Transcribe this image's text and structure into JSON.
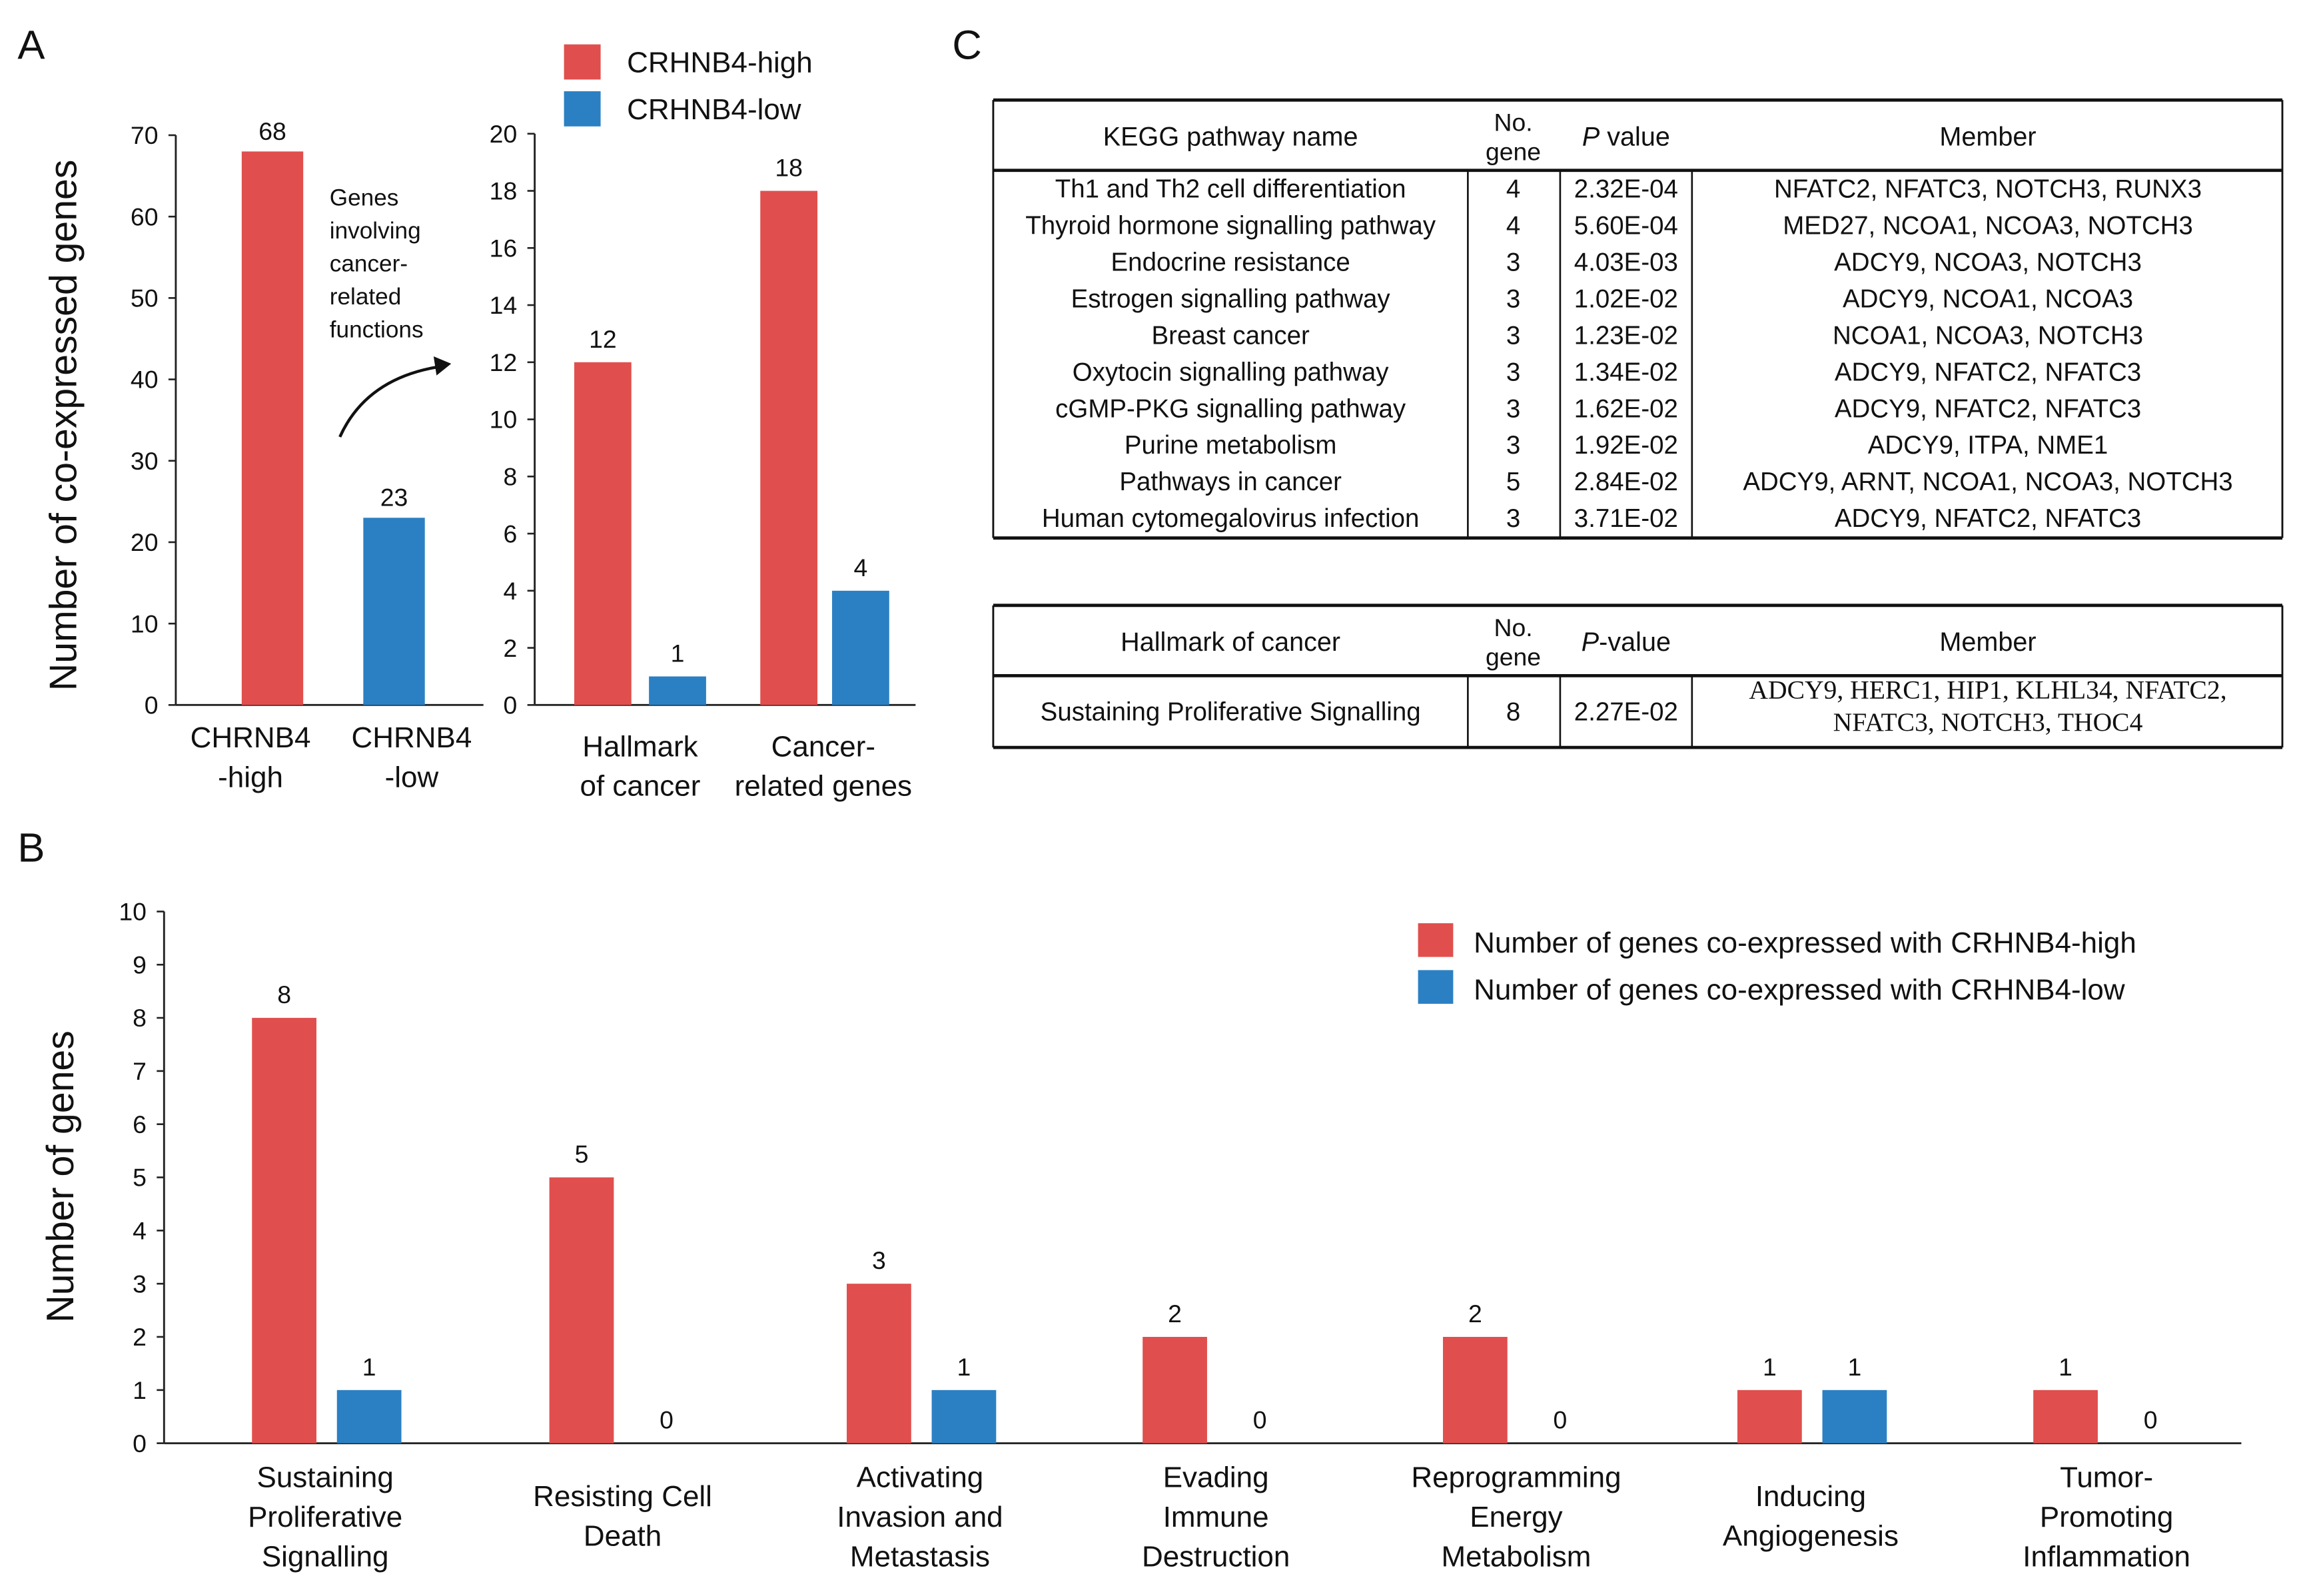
{
  "panel_labels": {
    "a": "A",
    "b": "B",
    "c": "C"
  },
  "colors": {
    "high": "#e04f4d",
    "low": "#2b80c3"
  },
  "chart_data": [
    {
      "id": "A-left",
      "type": "bar",
      "title": "",
      "ylabel": "Number of co-expressed genes",
      "ylim": [
        0,
        70
      ],
      "yticks": [
        "0",
        "10",
        "20",
        "30",
        "40",
        "50",
        "60",
        "70"
      ],
      "categories": [
        [
          "CHRNB4",
          "-high"
        ],
        [
          "CHRNB4",
          "-low"
        ]
      ],
      "values": [
        68,
        23
      ],
      "value_labels": [
        "68",
        "23"
      ],
      "annotation": [
        "Genes",
        "involving",
        "cancer-",
        "related",
        "functions"
      ]
    },
    {
      "id": "A-right",
      "type": "bar",
      "ylim": [
        0,
        20
      ],
      "yticks": [
        "0",
        "2",
        "4",
        "6",
        "8",
        "10",
        "12",
        "14",
        "16",
        "18",
        "20"
      ],
      "categories": [
        [
          "Hallmark",
          "of cancer"
        ],
        [
          "Cancer-",
          "related genes"
        ]
      ],
      "legend": [
        "CRHNB4-high",
        "CRHNB4-low"
      ],
      "legend_position": "top",
      "series": [
        {
          "name": "CRHNB4-high",
          "values": [
            12,
            18
          ],
          "labels": [
            "12",
            "18"
          ]
        },
        {
          "name": "CRHNB4-low",
          "values": [
            1,
            4
          ],
          "labels": [
            "1",
            "4"
          ]
        }
      ]
    },
    {
      "id": "B",
      "type": "bar",
      "ylabel": "Number of genes",
      "ylim": [
        0,
        10
      ],
      "yticks": [
        "0",
        "1",
        "2",
        "3",
        "4",
        "5",
        "6",
        "7",
        "8",
        "9",
        "10"
      ],
      "categories": [
        [
          "Sustaining",
          "Proliferative",
          "Signalling"
        ],
        [
          "Resisting Cell",
          "Death"
        ],
        [
          "Activating",
          "Invasion and",
          "Metastasis"
        ],
        [
          "Evading",
          "Immune",
          "Destruction"
        ],
        [
          "Reprogramming",
          "Energy",
          "Metabolism"
        ],
        [
          "Inducing",
          "Angiogenesis"
        ],
        [
          "Tumor-",
          "Promoting",
          "Inflammation"
        ]
      ],
      "legend": [
        "Number of genes co-expressed with CRHNB4-high",
        "Number of genes co-expressed with CRHNB4-low"
      ],
      "legend_position": "top-right",
      "series": [
        {
          "name": "Number of genes co-expressed with CRHNB4-high",
          "values": [
            8,
            5,
            3,
            2,
            2,
            1,
            1
          ],
          "labels": [
            "8",
            "5",
            "3",
            "2",
            "2",
            "1",
            "1"
          ]
        },
        {
          "name": "Number of genes co-expressed with CRHNB4-low",
          "values": [
            1,
            0,
            1,
            0,
            0,
            1,
            0
          ],
          "labels": [
            "1",
            "0",
            "1",
            "0",
            "0",
            "1",
            "0"
          ]
        }
      ]
    }
  ],
  "kegg_table": {
    "headers": [
      [
        "KEGG pathway  name"
      ],
      [
        "No.",
        "gene"
      ],
      [
        "P",
        " value"
      ],
      [
        "Member"
      ]
    ],
    "rows": [
      [
        "Th1 and Th2 cell differentiation",
        "4",
        "2.32E-04",
        "NFATC2, NFATC3, NOTCH3, RUNX3"
      ],
      [
        "Thyroid hormone signalling  pathway",
        "4",
        "5.60E-04",
        "MED27, NCOA1, NCOA3, NOTCH3"
      ],
      [
        "Endocrine resistance",
        "3",
        "4.03E-03",
        "ADCY9, NCOA3, NOTCH3"
      ],
      [
        "Estrogen signalling  pathway",
        "3",
        "1.02E-02",
        "ADCY9, NCOA1, NCOA3"
      ],
      [
        "Breast cancer",
        "3",
        "1.23E-02",
        "NCOA1, NCOA3, NOTCH3"
      ],
      [
        "Oxytocin signalling  pathway",
        "3",
        "1.34E-02",
        "ADCY9, NFATC2, NFATC3"
      ],
      [
        "cGMP-PKG signalling  pathway",
        "3",
        "1.62E-02",
        "ADCY9, NFATC2, NFATC3"
      ],
      [
        "Purine  metabolism",
        "3",
        "1.92E-02",
        "ADCY9, ITPA, NME1"
      ],
      [
        "Pathways in cancer",
        "5",
        "2.84E-02",
        "ADCY9, ARNT, NCOA1, NCOA3, NOTCH3"
      ],
      [
        "Human  cytomegalovirus  infection",
        "3",
        "3.71E-02",
        "ADCY9, NFATC2, NFATC3"
      ]
    ]
  },
  "hallmark_table": {
    "headers": [
      [
        "Hallmark  of cancer"
      ],
      [
        "No.",
        "gene"
      ],
      [
        "P",
        "-value"
      ],
      [
        "Member"
      ]
    ],
    "rows": [
      [
        "Sustaining  Proliferative Signalling",
        "8",
        "2.27E-02",
        [
          "ADCY9, HERC1, HIP1,  KLHL34,  NFATC2,",
          "NFATC3, NOTCH3, THOC4"
        ]
      ]
    ]
  }
}
